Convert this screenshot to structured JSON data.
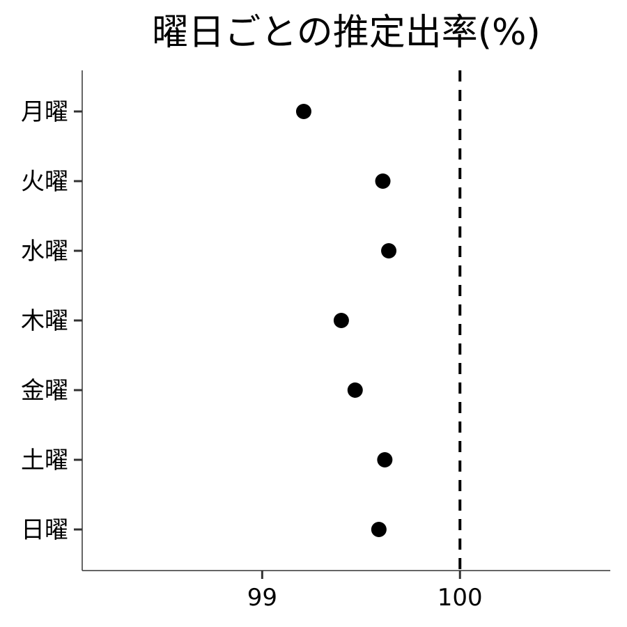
{
  "chart_data": {
    "type": "scatter",
    "title": "曜日ごとの推定出率(%)",
    "xlabel": "",
    "ylabel": "",
    "categories": [
      "月曜",
      "火曜",
      "水曜",
      "木曜",
      "金曜",
      "土曜",
      "日曜"
    ],
    "values": [
      99.21,
      99.61,
      99.64,
      99.4,
      99.47,
      99.62,
      99.59
    ],
    "xlim": [
      98.09,
      100.76
    ],
    "xticks": [
      "99",
      "100"
    ],
    "xtick_values": [
      99,
      100
    ],
    "reference_line": {
      "axis": "x",
      "value": 100,
      "style": "dashed"
    },
    "grid": false,
    "legend": "none",
    "colors": {
      "point": "#000000",
      "axis": "#333333",
      "reference": "#000000"
    }
  }
}
